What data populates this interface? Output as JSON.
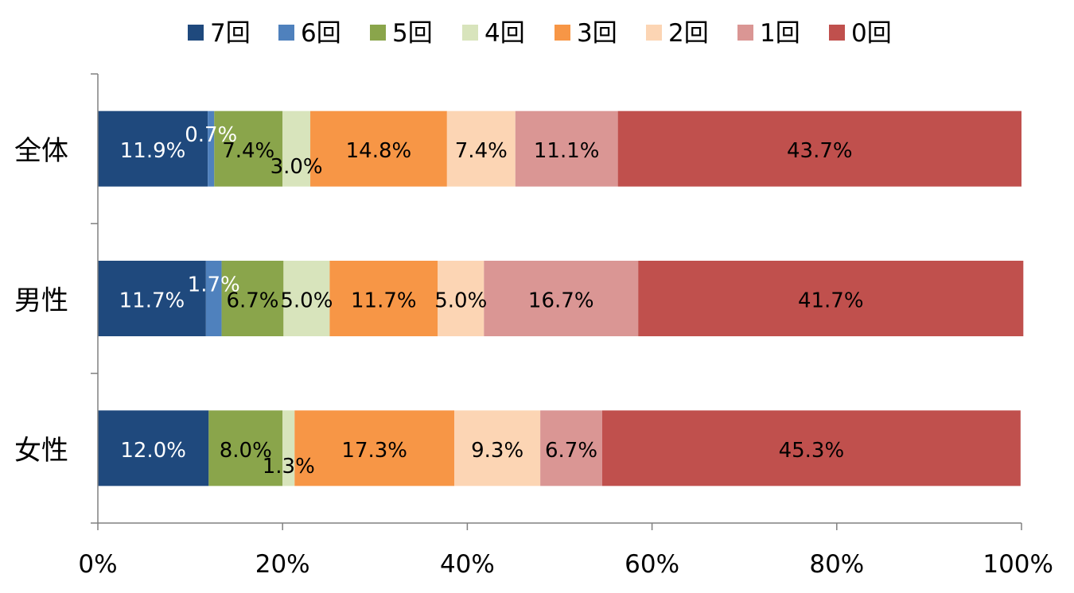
{
  "chart_data": {
    "type": "bar",
    "orientation": "horizontal",
    "stacked": "percent",
    "title": "",
    "xlabel": "",
    "ylabel": "",
    "xlim": [
      0,
      100
    ],
    "x_ticks": [
      "0%",
      "20%",
      "40%",
      "60%",
      "80%",
      "100%"
    ],
    "legend_position": "top",
    "categories": [
      "全体",
      "男性",
      "女性"
    ],
    "series": [
      {
        "name": "7回",
        "color": "#1F497D",
        "label_color": "#FFFFFF",
        "values": [
          11.9,
          11.7,
          12.0
        ],
        "labels": [
          "11.9%",
          "11.7%",
          "12.0%"
        ]
      },
      {
        "name": "6回",
        "color": "#4F81BD",
        "label_color": "#FFFFFF",
        "values": [
          0.7,
          1.7,
          0.0
        ],
        "labels": [
          "0.7%",
          "1.7%",
          ""
        ]
      },
      {
        "name": "5回",
        "color": "#8AA54B",
        "label_color": "#000000",
        "values": [
          7.4,
          6.7,
          8.0
        ],
        "labels": [
          "7.4%",
          "6.7%",
          "8.0%"
        ]
      },
      {
        "name": "4回",
        "color": "#D8E4BC",
        "label_color": "#000000",
        "values": [
          3.0,
          5.0,
          1.3
        ],
        "labels": [
          "3.0%",
          "5.0%",
          "1.3%"
        ]
      },
      {
        "name": "3回",
        "color": "#F79646",
        "label_color": "#000000",
        "values": [
          14.8,
          11.7,
          17.3
        ],
        "labels": [
          "14.8%",
          "11.7%",
          "17.3%"
        ]
      },
      {
        "name": "2回",
        "color": "#FCD5B4",
        "label_color": "#000000",
        "values": [
          7.4,
          5.0,
          9.3
        ],
        "labels": [
          "7.4%",
          "5.0%",
          "9.3%"
        ]
      },
      {
        "name": "1回",
        "color": "#DA9694",
        "label_color": "#000000",
        "values": [
          11.1,
          16.7,
          6.7
        ],
        "labels": [
          "11.1%",
          "16.7%",
          "6.7%"
        ]
      },
      {
        "name": "0回",
        "color": "#C0504D",
        "label_color": "#000000",
        "values": [
          43.7,
          41.7,
          45.3
        ],
        "labels": [
          "43.7%",
          "41.7%",
          "45.3%"
        ]
      }
    ]
  }
}
